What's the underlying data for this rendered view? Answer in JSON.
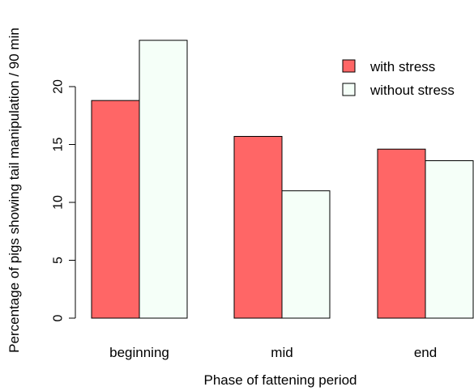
{
  "chart_data": {
    "type": "bar",
    "categories": [
      "beginning",
      "mid",
      "end"
    ],
    "series": [
      {
        "name": "with stress",
        "color": "#ff6666",
        "values": [
          18.8,
          15.7,
          14.6
        ]
      },
      {
        "name": "without stress",
        "color": "#f5fff8",
        "values": [
          24.0,
          11.0,
          13.6
        ]
      }
    ],
    "xlabel": "Phase of fattening period",
    "ylabel": "Percentage of pigs showing tail manipulation / 90 min",
    "yticks": [
      0,
      5,
      10,
      15,
      20
    ],
    "ylim": [
      0,
      24
    ],
    "legend_position": "top-right",
    "grid": false,
    "bar_border_color": "#000000"
  }
}
